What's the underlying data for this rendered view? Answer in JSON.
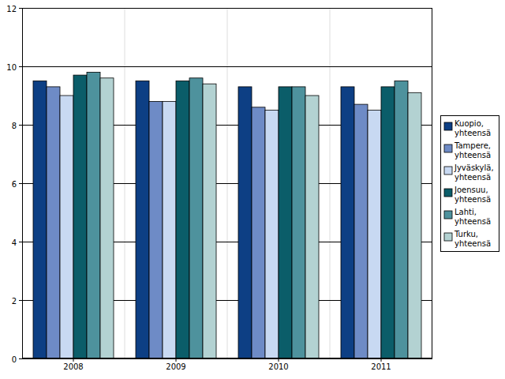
{
  "chart_data": {
    "type": "bar",
    "categories": [
      "2008",
      "2009",
      "2010",
      "2011"
    ],
    "series": [
      {
        "name": "Kuopio, yhteensä",
        "color": "#0d3f84",
        "values": [
          9.5,
          9.5,
          9.3,
          9.3
        ]
      },
      {
        "name": "Tampere, yhteensä",
        "color": "#6e8bc6",
        "values": [
          9.3,
          8.8,
          8.6,
          8.7
        ]
      },
      {
        "name": "Jyväskylä, yhteensä",
        "color": "#c8d9f2",
        "values": [
          9.0,
          8.8,
          8.5,
          8.5
        ]
      },
      {
        "name": "Joensuu, yhteensä",
        "color": "#0b5d69",
        "values": [
          9.7,
          9.5,
          9.3,
          9.3
        ]
      },
      {
        "name": "Lahti, yhteensä",
        "color": "#4e929d",
        "values": [
          9.8,
          9.6,
          9.3,
          9.5
        ]
      },
      {
        "name": "Turku, yhteensä",
        "color": "#b3d2d2",
        "values": [
          9.6,
          9.4,
          9.0,
          9.1
        ]
      }
    ],
    "ylim": [
      0,
      12
    ],
    "yticks": [
      0,
      2,
      4,
      6,
      8,
      10,
      12
    ],
    "grid": true,
    "legend": "right"
  }
}
